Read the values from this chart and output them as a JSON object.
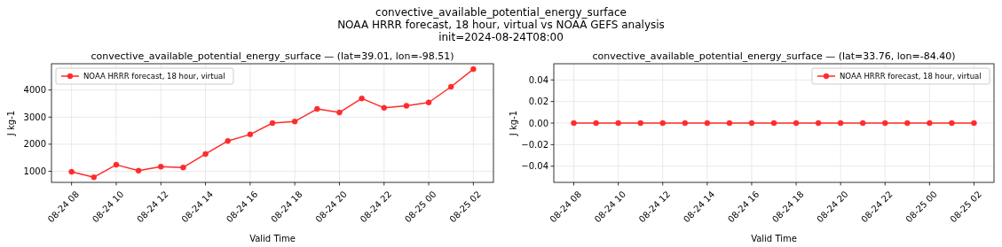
{
  "chart_data": [
    {
      "type": "line",
      "title": "convective_available_potential_energy_surface — (lat=39.01, lon=-98.51)",
      "annotations": [
        "convective_available_potential_energy_surface",
        "NOAA HRRR forecast, 18 hour, virtual vs NOAA GEFS analysis",
        "init=2024-08-24T08:00"
      ],
      "xlabel": "Valid Time",
      "ylabel": "J kg-1",
      "x": [
        "2024-08-24T08:00",
        "2024-08-24T09:00",
        "2024-08-24T10:00",
        "2024-08-24T11:00",
        "2024-08-24T12:00",
        "2024-08-24T13:00",
        "2024-08-24T14:00",
        "2024-08-24T15:00",
        "2024-08-24T16:00",
        "2024-08-24T17:00",
        "2024-08-24T18:00",
        "2024-08-24T19:00",
        "2024-08-24T20:00",
        "2024-08-24T21:00",
        "2024-08-24T22:00",
        "2024-08-24T23:00",
        "2024-08-25T00:00",
        "2024-08-25T01:00",
        "2024-08-25T02:00"
      ],
      "series": [
        {
          "name": "NOAA HRRR forecast, 18 hour, virtual",
          "color": "#ff2a2a",
          "values": [
            980,
            780,
            1240,
            1020,
            1170,
            1140,
            1640,
            2120,
            2360,
            2780,
            2840,
            3300,
            3170,
            3690,
            3340,
            3420,
            3540,
            4120,
            4770
          ]
        }
      ],
      "xlim": [
        "2024-08-24T07:06",
        "2024-08-25T02:54"
      ],
      "xticks": [
        {
          "value": "2024-08-24T08:00",
          "label": "08-24 08"
        },
        {
          "value": "2024-08-24T10:00",
          "label": "08-24 10"
        },
        {
          "value": "2024-08-24T12:00",
          "label": "08-24 12"
        },
        {
          "value": "2024-08-24T14:00",
          "label": "08-24 14"
        },
        {
          "value": "2024-08-24T16:00",
          "label": "08-24 16"
        },
        {
          "value": "2024-08-24T18:00",
          "label": "08-24 18"
        },
        {
          "value": "2024-08-24T20:00",
          "label": "08-24 20"
        },
        {
          "value": "2024-08-24T22:00",
          "label": "08-24 22"
        },
        {
          "value": "2024-08-25T00:00",
          "label": "08-25 00"
        },
        {
          "value": "2024-08-25T02:00",
          "label": "08-25 02"
        }
      ],
      "ylim": [
        590,
        4970
      ],
      "yticks": [
        1000,
        2000,
        3000,
        4000
      ],
      "grid": true,
      "legend": "top left",
      "marker": "circle",
      "line_style": "solid"
    },
    {
      "type": "line",
      "title": "convective_available_potential_energy_surface — (lat=33.76, lon=-84.40)",
      "xlabel": "Valid Time",
      "ylabel": "J kg-1",
      "x": [
        "2024-08-24T08:00",
        "2024-08-24T09:00",
        "2024-08-24T10:00",
        "2024-08-24T11:00",
        "2024-08-24T12:00",
        "2024-08-24T13:00",
        "2024-08-24T14:00",
        "2024-08-24T15:00",
        "2024-08-24T16:00",
        "2024-08-24T17:00",
        "2024-08-24T18:00",
        "2024-08-24T19:00",
        "2024-08-24T20:00",
        "2024-08-24T21:00",
        "2024-08-24T22:00",
        "2024-08-24T23:00",
        "2024-08-25T00:00",
        "2024-08-25T01:00",
        "2024-08-25T02:00"
      ],
      "series": [
        {
          "name": "NOAA HRRR forecast, 18 hour, virtual",
          "color": "#ff2a2a",
          "values": [
            0,
            0,
            0,
            0,
            0,
            0,
            0,
            0,
            0,
            0,
            0,
            0,
            0,
            0,
            0,
            0,
            0,
            0,
            0
          ]
        }
      ],
      "xlim": [
        "2024-08-24T07:06",
        "2024-08-25T02:54"
      ],
      "xticks": [
        {
          "value": "2024-08-24T08:00",
          "label": "08-24 08"
        },
        {
          "value": "2024-08-24T10:00",
          "label": "08-24 10"
        },
        {
          "value": "2024-08-24T12:00",
          "label": "08-24 12"
        },
        {
          "value": "2024-08-24T14:00",
          "label": "08-24 14"
        },
        {
          "value": "2024-08-24T16:00",
          "label": "08-24 16"
        },
        {
          "value": "2024-08-24T18:00",
          "label": "08-24 18"
        },
        {
          "value": "2024-08-24T20:00",
          "label": "08-24 20"
        },
        {
          "value": "2024-08-24T22:00",
          "label": "08-24 22"
        },
        {
          "value": "2024-08-25T00:00",
          "label": "08-25 00"
        },
        {
          "value": "2024-08-25T02:00",
          "label": "08-25 02"
        }
      ],
      "ylim": [
        -0.055,
        0.055
      ],
      "yticks": [
        {
          "value": -0.04,
          "label": "−0.04"
        },
        {
          "value": -0.02,
          "label": "−0.02"
        },
        {
          "value": 0,
          "label": "0.00"
        },
        {
          "value": 0.02,
          "label": "0.02"
        },
        {
          "value": 0.04,
          "label": "0.04"
        }
      ],
      "grid": true,
      "legend": "top right",
      "marker": "circle",
      "line_style": "solid"
    }
  ]
}
